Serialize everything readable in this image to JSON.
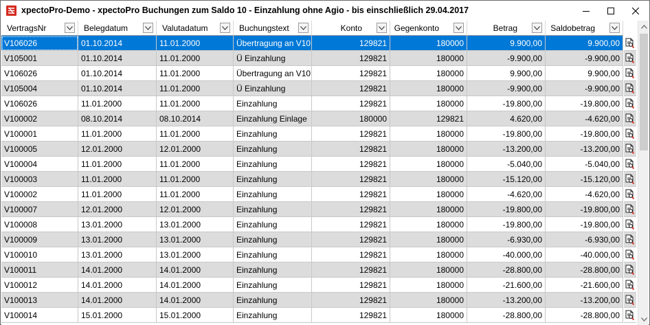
{
  "window": {
    "title": "xpectoPro-Demo - xpectoPro Buchungen zum Saldo 10 - Einzahlung ohne Agio - bis einschließlich 29.04.2017",
    "icon": "xpecto-app-icon",
    "controls": [
      "minimize-icon",
      "maximize-icon",
      "close-icon"
    ]
  },
  "grid": {
    "columns": [
      {
        "key": "vertrag",
        "label": "VertragsNr",
        "align": "left"
      },
      {
        "key": "beleg",
        "label": "Belegdatum",
        "align": "left"
      },
      {
        "key": "valuta",
        "label": "Valutadatum",
        "align": "left"
      },
      {
        "key": "text",
        "label": "Buchungstext",
        "align": "left"
      },
      {
        "key": "konto",
        "label": "Konto",
        "align": "right"
      },
      {
        "key": "gegen",
        "label": "Gegenkonto",
        "align": "right"
      },
      {
        "key": "betrag",
        "label": "Betrag",
        "align": "right"
      },
      {
        "key": "saldo",
        "label": "Saldobetrag",
        "align": "right"
      }
    ],
    "selected_row": 0,
    "row_action_icon": "document-search-icon",
    "rows": [
      [
        "V106026",
        "01.10.2014",
        "11.01.2000",
        "Übertragung an V10...",
        "129821",
        "180000",
        "9.900,00",
        "9.900,00"
      ],
      [
        "V105001",
        "01.10.2014",
        "11.01.2000",
        "Ü Einzahlung",
        "129821",
        "180000",
        "-9.900,00",
        "-9.900,00"
      ],
      [
        "V106026",
        "01.10.2014",
        "11.01.2000",
        "Übertragung an V10...",
        "129821",
        "180000",
        "9.900,00",
        "9.900,00"
      ],
      [
        "V105004",
        "01.10.2014",
        "11.01.2000",
        "Ü Einzahlung",
        "129821",
        "180000",
        "-9.900,00",
        "-9.900,00"
      ],
      [
        "V106026",
        "11.01.2000",
        "11.01.2000",
        "Einzahlung",
        "129821",
        "180000",
        "-19.800,00",
        "-19.800,00"
      ],
      [
        "V100002",
        "08.10.2014",
        "08.10.2014",
        "Einzahlung Einlage",
        "180000",
        "129821",
        "4.620,00",
        "-4.620,00"
      ],
      [
        "V100001",
        "11.01.2000",
        "11.01.2000",
        "Einzahlung",
        "129821",
        "180000",
        "-19.800,00",
        "-19.800,00"
      ],
      [
        "V100005",
        "12.01.2000",
        "12.01.2000",
        "Einzahlung",
        "129821",
        "180000",
        "-13.200,00",
        "-13.200,00"
      ],
      [
        "V100004",
        "11.01.2000",
        "11.01.2000",
        "Einzahlung",
        "129821",
        "180000",
        "-5.040,00",
        "-5.040,00"
      ],
      [
        "V100003",
        "11.01.2000",
        "11.01.2000",
        "Einzahlung",
        "129821",
        "180000",
        "-15.120,00",
        "-15.120,00"
      ],
      [
        "V100002",
        "11.01.2000",
        "11.01.2000",
        "Einzahlung",
        "129821",
        "180000",
        "-4.620,00",
        "-4.620,00"
      ],
      [
        "V100007",
        "12.01.2000",
        "12.01.2000",
        "Einzahlung",
        "129821",
        "180000",
        "-19.800,00",
        "-19.800,00"
      ],
      [
        "V100008",
        "13.01.2000",
        "13.01.2000",
        "Einzahlung",
        "129821",
        "180000",
        "-19.800,00",
        "-19.800,00"
      ],
      [
        "V100009",
        "13.01.2000",
        "13.01.2000",
        "Einzahlung",
        "129821",
        "180000",
        "-6.930,00",
        "-6.930,00"
      ],
      [
        "V100010",
        "13.01.2000",
        "13.01.2000",
        "Einzahlung",
        "129821",
        "180000",
        "-40.000,00",
        "-40.000,00"
      ],
      [
        "V100011",
        "14.01.2000",
        "14.01.2000",
        "Einzahlung",
        "129821",
        "180000",
        "-28.800,00",
        "-28.800,00"
      ],
      [
        "V100012",
        "14.01.2000",
        "14.01.2000",
        "Einzahlung",
        "129821",
        "180000",
        "-21.600,00",
        "-21.600,00"
      ],
      [
        "V100013",
        "14.01.2000",
        "14.01.2000",
        "Einzahlung",
        "129821",
        "180000",
        "-13.200,00",
        "-13.200,00"
      ],
      [
        "V100014",
        "15.01.2000",
        "15.01.2000",
        "Einzahlung",
        "129821",
        "180000",
        "-28.800,00",
        "-28.800,00"
      ]
    ]
  },
  "colors": {
    "selection": "#0078d7",
    "alt_row": "#dcdcdc",
    "brand_red": "#d42a20"
  }
}
